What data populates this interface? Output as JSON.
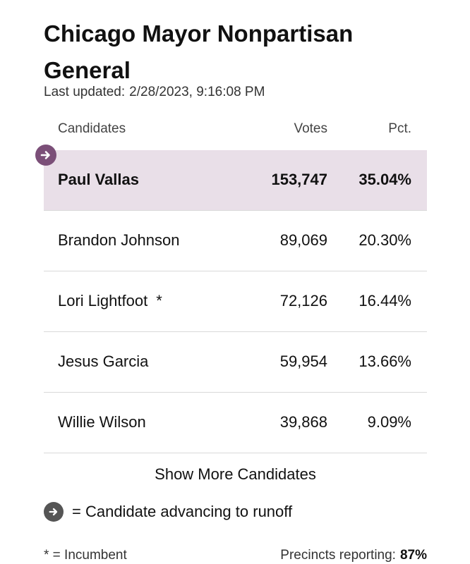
{
  "header": {
    "title": "Chicago Mayor Nonpartisan General",
    "updated_label": "Last updated:",
    "updated_value": "2/28/2023, 9:16:08 PM"
  },
  "table": {
    "columns": {
      "candidates": "Candidates",
      "votes": "Votes",
      "pct": "Pct."
    },
    "rows": [
      {
        "name": "Paul Vallas",
        "votes": "153,747",
        "pct": "35.04%",
        "advancing": true,
        "incumbent": ""
      },
      {
        "name": "Brandon Johnson",
        "votes": "89,069",
        "pct": "20.30%",
        "advancing": false,
        "incumbent": ""
      },
      {
        "name": "Lori Lightfoot",
        "votes": "72,126",
        "pct": "16.44%",
        "advancing": false,
        "incumbent": "*"
      },
      {
        "name": "Jesus Garcia",
        "votes": "59,954",
        "pct": "13.66%",
        "advancing": false,
        "incumbent": ""
      },
      {
        "name": "Willie Wilson",
        "votes": "39,868",
        "pct": "9.09%",
        "advancing": false,
        "incumbent": ""
      }
    ]
  },
  "actions": {
    "show_more": "Show More Candidates"
  },
  "legend": {
    "advancing_icon": "arrow-right-circle-icon",
    "advancing_text": "= Candidate advancing to runoff"
  },
  "footer": {
    "incumbent_note": "* = Incumbent",
    "precincts_label": "Precincts reporting:",
    "precincts_value": "87%"
  },
  "colors": {
    "winner_row_bg": "#e9dfe8",
    "advancing_icon_purple": "#7b4f78",
    "legend_icon_gray": "#555555"
  }
}
